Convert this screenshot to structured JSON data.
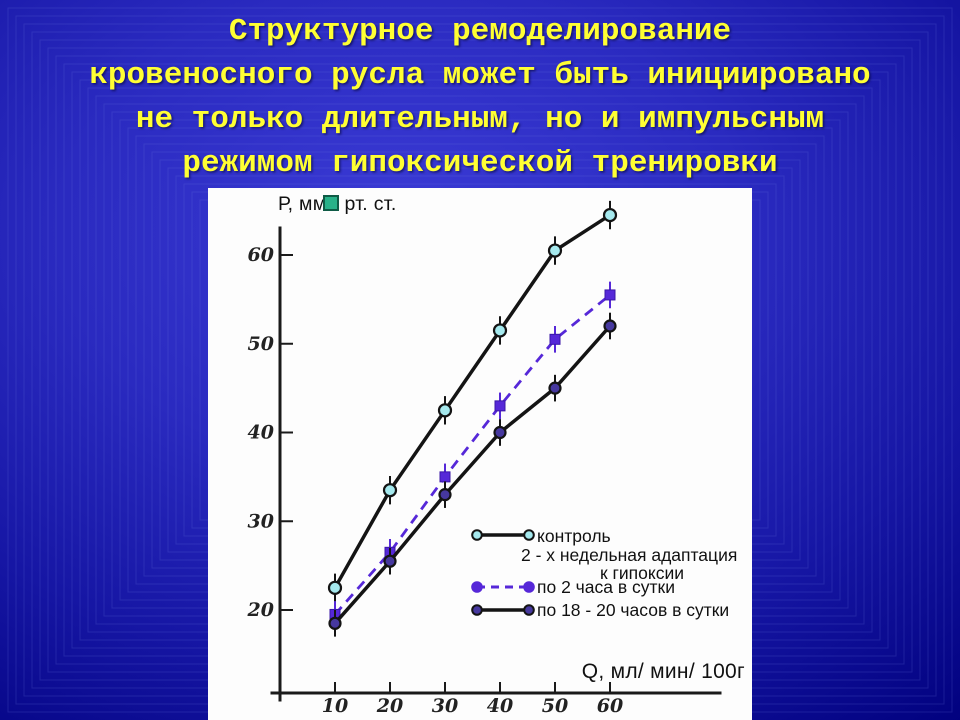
{
  "slide": {
    "title_lines": [
      "Структурное ремоделирование",
      "кровеносного русла может быть инициировано",
      "не только длительным, но и импульсным",
      "режимом гипоксической тренировки"
    ],
    "title_color": "#ffff33",
    "background_color": "#1f1fb0",
    "pattern_line_color": "#6d7de0"
  },
  "chart_data": {
    "type": "line",
    "x": [
      10,
      20,
      30,
      40,
      50,
      60
    ],
    "x_ticks": [
      10,
      20,
      30,
      40,
      50,
      60
    ],
    "y_ticks": [
      20,
      30,
      40,
      50,
      60
    ],
    "xlim": [
      5,
      65
    ],
    "ylim": [
      15,
      66
    ],
    "grid": false,
    "xlabel": "Q, мл/ мин/ 100г",
    "ylabel_prefix": "Р, мм",
    "ylabel_suffix": "рт. ст.",
    "series": [
      {
        "name": "контроль",
        "values": [
          22.5,
          33.5,
          42.5,
          51.5,
          60.5,
          64.5
        ],
        "error": 1.6,
        "line": "solid",
        "line_color": "#141414",
        "marker": "circle-open",
        "marker_fill": "#a5e9ee"
      },
      {
        "name": "по 2 часа в сутки",
        "values": [
          19.5,
          26.5,
          35,
          43,
          50.5,
          55.5
        ],
        "error": 1.5,
        "line": "dashed",
        "line_color": "#5628d8",
        "marker": "square",
        "marker_fill": "#5628d8"
      },
      {
        "name": "по 18 - 20 часов в сутки",
        "values": [
          18.5,
          25.5,
          33,
          40,
          45,
          52
        ],
        "error": 1.5,
        "line": "solid",
        "line_color": "#141414",
        "marker": "circle",
        "marker_fill": "#46389f"
      }
    ],
    "legend": {
      "position": "inside-right-middle",
      "row1": "контроль",
      "row2": "2 - х недельная адаптация",
      "row3": "к гипоксии",
      "row4": "по 2 часа в сутки",
      "row5": "по 18 - 20 часов в сутки"
    }
  }
}
